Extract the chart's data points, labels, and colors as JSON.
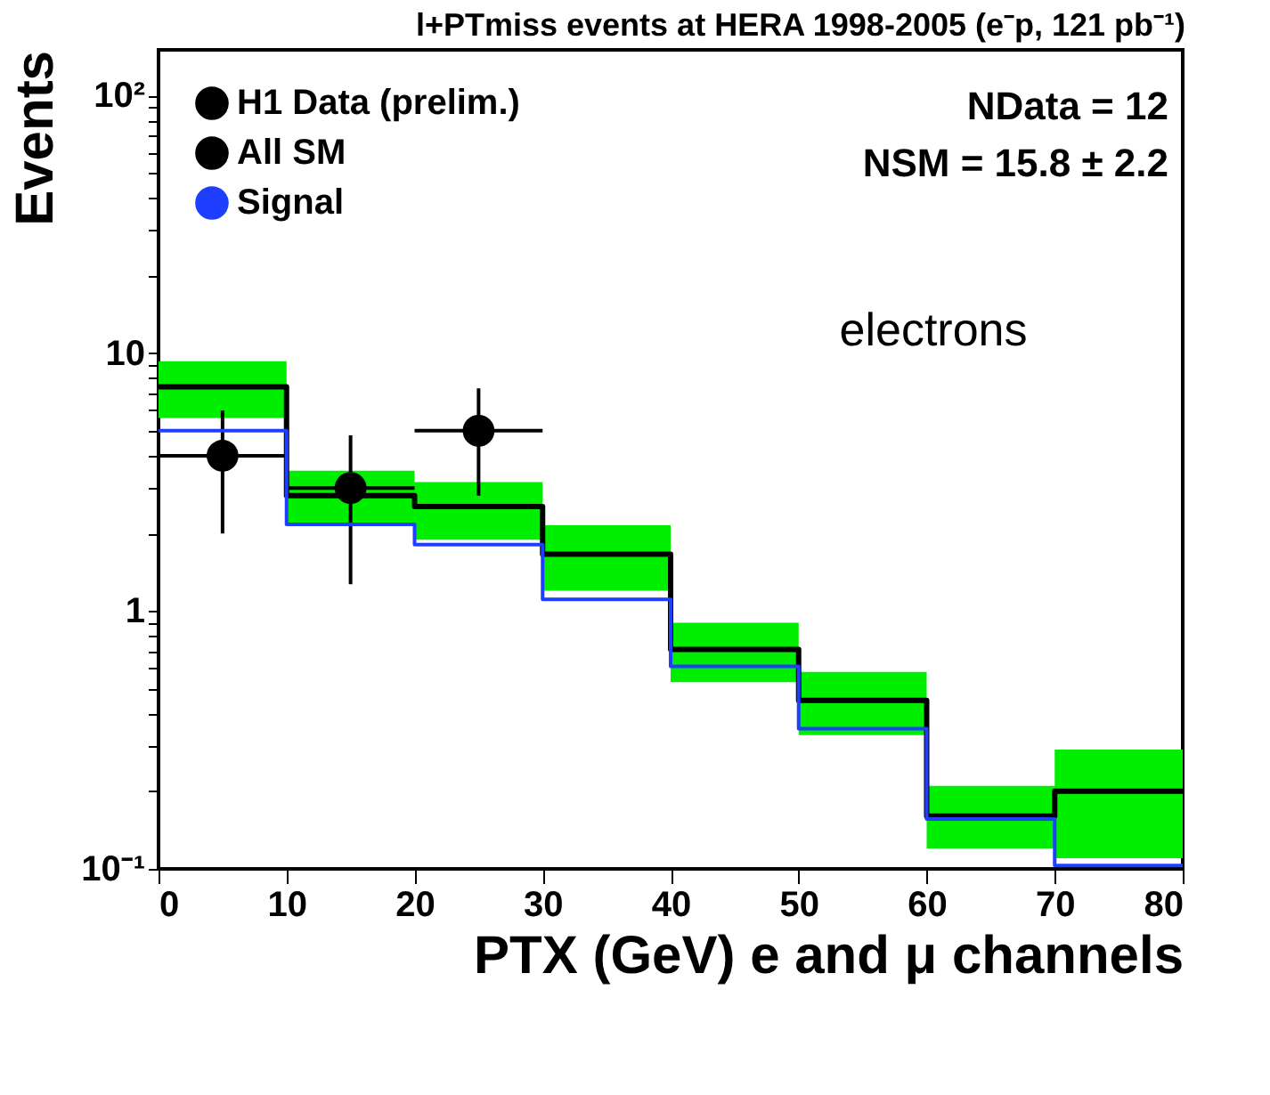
{
  "chart_data": {
    "type": "step",
    "title": "l+PTmiss events at HERA 1998-2005 (e⁻p, 121 pb⁻¹)",
    "xlabel": "PTX (GeV)   e and μ channels",
    "ylabel": "Events",
    "series": [
      {
        "name": "H1 Data (prelim.)",
        "type": "scatter",
        "color": "#000000",
        "x": [
          5,
          15,
          25
        ],
        "values": [
          4.0,
          3.0,
          5.0
        ],
        "errors": [
          [
            2.0,
            6.0
          ],
          [
            1.27,
            4.8
          ],
          [
            2.8,
            7.3
          ]
        ],
        "xerrors": [
          5,
          5,
          5
        ],
        "marker": "circle"
      },
      {
        "name": "All SM",
        "color": "#000000",
        "x": [
          0,
          10,
          20,
          30,
          40,
          50,
          60,
          70,
          80
        ],
        "values": [
          7.4,
          2.8,
          2.54,
          1.66,
          0.71,
          0.45,
          0.16,
          0.2,
          0.2
        ],
        "lower": [
          5.6,
          2.2,
          1.89,
          1.2,
          0.53,
          0.33,
          0.12,
          0.11,
          0.11
        ],
        "upper": [
          9.3,
          3.5,
          3.16,
          2.15,
          0.9,
          0.58,
          0.21,
          0.29,
          0.29
        ]
      },
      {
        "name": "Signal",
        "color": "#1f3fff",
        "x": [
          0,
          10,
          20,
          30,
          40,
          50,
          60,
          70,
          80
        ],
        "values": [
          5.0,
          2.17,
          1.81,
          1.11,
          0.61,
          0.35,
          0.156,
          0.103,
          0.103
        ]
      }
    ],
    "log": "y",
    "xlim": [
      0,
      80
    ],
    "xticks": [
      0,
      10,
      20,
      30,
      40,
      50,
      60,
      70,
      80
    ],
    "ylim": [
      0.1,
      150
    ],
    "yticks": [
      {
        "value": 0.1,
        "label": "10⁻¹"
      },
      {
        "value": 0.2,
        "label": null
      },
      {
        "value": 0.3,
        "label": null
      },
      {
        "value": 0.4,
        "label": null
      },
      {
        "value": 0.5,
        "label": null
      },
      {
        "value": 0.6,
        "label": null
      },
      {
        "value": 0.7,
        "label": null
      },
      {
        "value": 0.8,
        "label": null
      },
      {
        "value": 0.9,
        "label": null
      },
      1,
      {
        "value": 2,
        "label": null
      },
      {
        "value": 3,
        "label": null
      },
      {
        "value": 4,
        "label": null
      },
      {
        "value": 5,
        "label": null
      },
      {
        "value": 6,
        "label": null
      },
      {
        "value": 7,
        "label": null
      },
      {
        "value": 8,
        "label": null
      },
      {
        "value": 9,
        "label": null
      },
      10,
      {
        "value": 20,
        "label": null
      },
      {
        "value": 30,
        "label": null
      },
      {
        "value": 40,
        "label": null
      },
      {
        "value": 50,
        "label": null
      },
      {
        "value": 60,
        "label": null
      },
      {
        "value": 70,
        "label": null
      },
      {
        "value": 80,
        "label": null
      },
      {
        "value": 90,
        "label": null
      },
      {
        "value": 100,
        "label": "10²"
      }
    ],
    "grid": false,
    "legend": "top left",
    "annotations": [
      "NData = 12",
      "NSM = 15.8 ± 2.2",
      "electrons"
    ]
  }
}
